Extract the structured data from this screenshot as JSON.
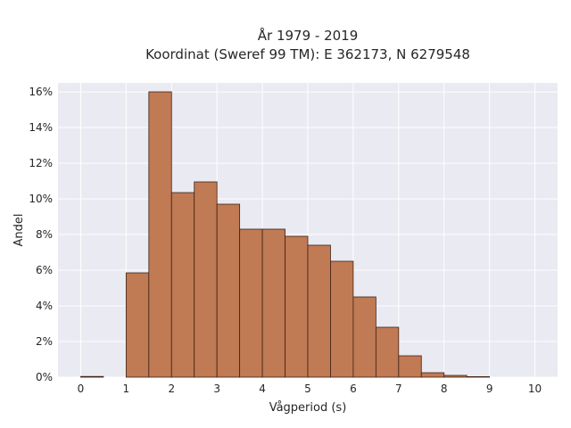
{
  "chart_data": {
    "type": "bar",
    "title_lines": [
      "År 1979 - 2019",
      "Koordinat (Sweref 99 TM): E 362173, N 6279548"
    ],
    "xlabel": "Vågperiod (s)",
    "ylabel": "Andel",
    "xlim": [
      -0.5,
      10.5
    ],
    "ylim": [
      0,
      0.165
    ],
    "x_ticks": [
      0,
      1,
      2,
      3,
      4,
      5,
      6,
      7,
      8,
      9,
      10
    ],
    "y_ticks": [
      0,
      0.02,
      0.04,
      0.06,
      0.08,
      0.1,
      0.12,
      0.14,
      0.16
    ],
    "y_tick_labels": [
      "0%",
      "2%",
      "4%",
      "6%",
      "8%",
      "10%",
      "12%",
      "14%",
      "16%"
    ],
    "bin_width": 0.5,
    "bins": [
      0,
      0.5,
      1,
      1.5,
      2,
      2.5,
      3,
      3.5,
      4,
      4.5,
      5,
      5.5,
      6,
      6.5,
      7,
      7.5,
      8,
      8.5,
      9,
      9.5
    ],
    "values": [
      0.0004,
      0,
      0.0585,
      0.16,
      0.1035,
      0.1095,
      0.097,
      0.083,
      0.083,
      0.079,
      0.074,
      0.065,
      0.045,
      0.028,
      0.012,
      0.0025,
      0.001,
      0.0003,
      0,
      0
    ],
    "grid": true,
    "bar_color": "#c07a54",
    "bar_edge_color": "#3d2215",
    "plot_background": "#eaeaf2",
    "grid_color": "#ffffff"
  }
}
